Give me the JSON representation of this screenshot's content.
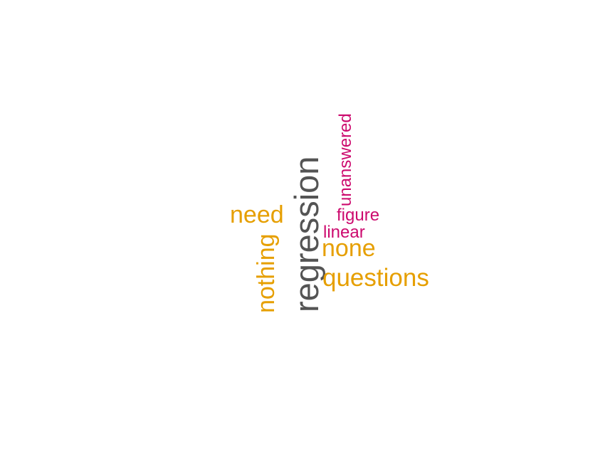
{
  "colors": {
    "dark": "#545454",
    "gold": "#E69F00",
    "magenta": "#CC0A6E"
  },
  "words": {
    "regression": "regression",
    "questions": "questions",
    "none": "none",
    "need": "need",
    "nothing": "nothing",
    "unanswered": "unanswered",
    "figure": "figure",
    "linear": "linear"
  }
}
